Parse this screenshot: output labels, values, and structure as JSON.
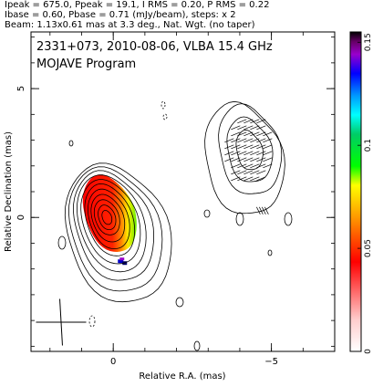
{
  "header": {
    "line1": "Ipeak = 675.0, Ppeak = 19.1, I RMS = 0.20, P RMS = 0.22",
    "line2": "Ibase = 0.60, Pbase = 0.71 (mJy/beam), steps: x 2",
    "line3": "Beam: 1.13x0.61 mas at 3.3 deg., Nat. Wgt. (no taper)"
  },
  "chart_data": {
    "type": "heatmap",
    "title": "2331+073, 2010-08-06, VLBA 15.4 GHz",
    "subtitle": "MOJAVE Program",
    "xlabel": "Relative R.A. (mas)",
    "ylabel": "Relative Declination (mas)",
    "xlim": [
      2.6,
      -7.0
    ],
    "ylim": [
      -5.2,
      7.2
    ],
    "xticks": [
      {
        "value": 0,
        "label": "0"
      },
      {
        "value": -5,
        "label": "−5"
      }
    ],
    "yticks": [
      {
        "value": 0,
        "label": "0"
      },
      {
        "value": 5,
        "label": "5"
      }
    ],
    "colorbar": {
      "ticks": [
        {
          "value": 0,
          "label": "0"
        },
        {
          "value": 0.05,
          "label": "0.05"
        },
        {
          "value": 0.1,
          "label": "0.1"
        },
        {
          "value": 0.15,
          "label": "0.15"
        }
      ],
      "range": [
        0,
        0.155
      ]
    },
    "core": {
      "ra": 0.2,
      "dec": 0.0,
      "contour_levels": 11
    },
    "jet_component": {
      "ra": -4.3,
      "dec": 2.6,
      "contour_levels": 4
    },
    "beam": {
      "major_mas": 1.13,
      "minor_mas": 0.61,
      "pa_deg": 3.3
    }
  }
}
